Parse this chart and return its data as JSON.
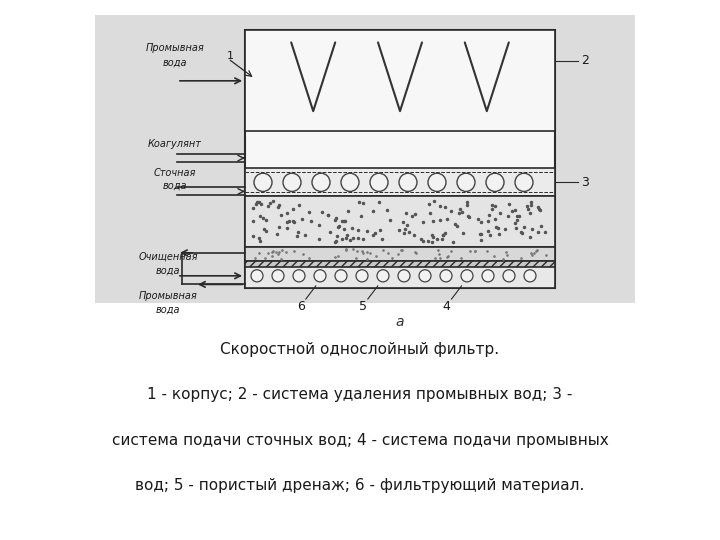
{
  "fig_bg": "#ffffff",
  "border_color": "#2a2a2a",
  "title_line1": "Скоростной однослойный фильтр.",
  "title_line2": "1 - корпус; 2 - система удаления промывных вод; 3 -",
  "title_line3": "система подачи сточных вод; 4 - система подачи промывных",
  "title_line4": "вод; 5 - пористый дренаж; 6 - фильтрующий материал."
}
